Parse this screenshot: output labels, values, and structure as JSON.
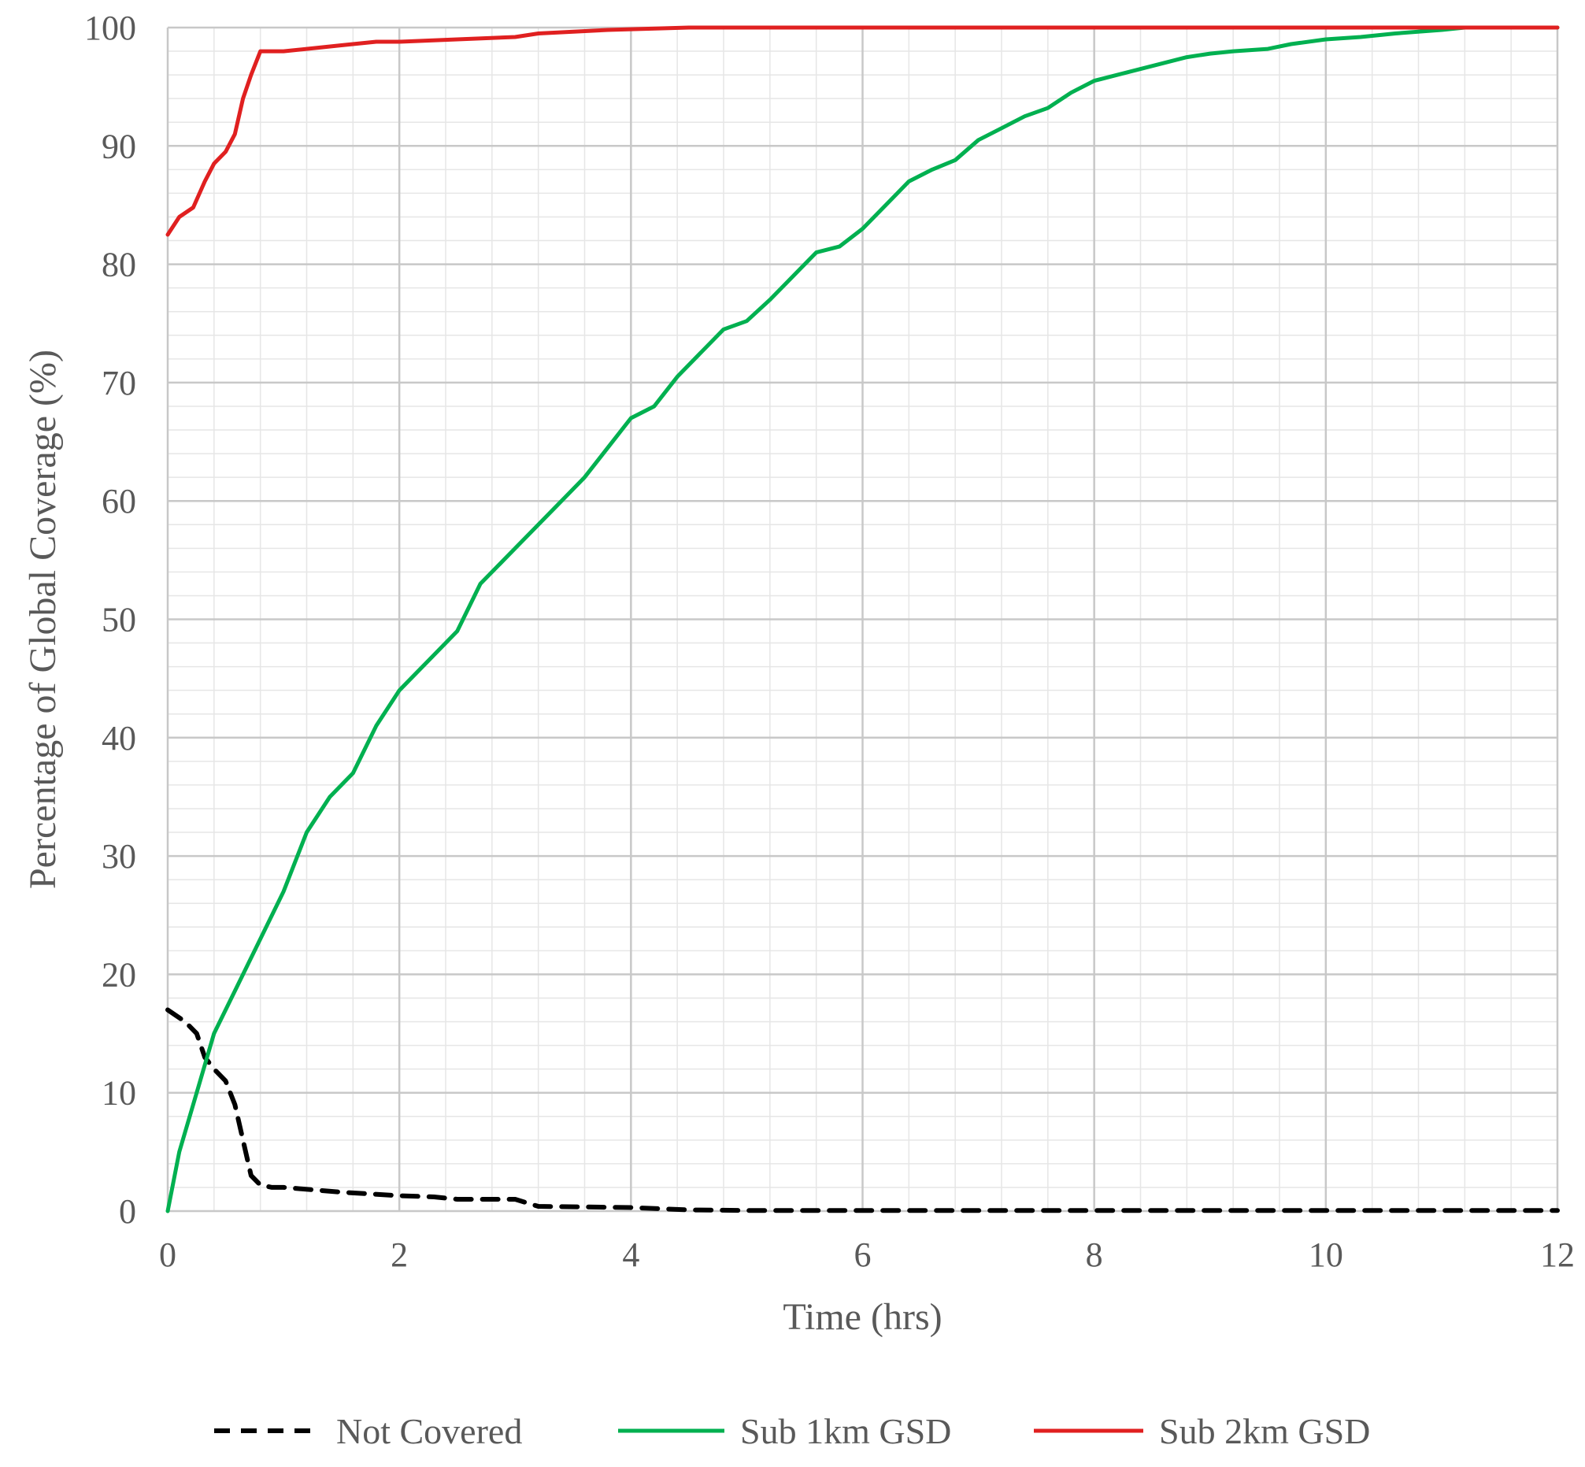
{
  "chart_data": {
    "type": "line",
    "title": "",
    "xlabel": "Time (hrs)",
    "ylabel": "Percentage of Global Coverage (%)",
    "xlim": [
      0,
      12
    ],
    "ylim": [
      0,
      100
    ],
    "x_ticks": [
      0,
      2,
      4,
      6,
      8,
      10,
      12
    ],
    "y_ticks": [
      0,
      10,
      20,
      30,
      40,
      50,
      60,
      70,
      80,
      90,
      100
    ],
    "x_tick_labels": [
      "0",
      "2",
      "4",
      "6",
      "8",
      "10",
      "12"
    ],
    "y_tick_labels": [
      "0",
      "10",
      "20",
      "30",
      "40",
      "50",
      "60",
      "70",
      "80",
      "90",
      "100"
    ],
    "grid": true,
    "legend_position": "bottom",
    "series": [
      {
        "name": "Not Covered",
        "color": "#000000",
        "dash": true,
        "points": [
          [
            0,
            17
          ],
          [
            0.15,
            16
          ],
          [
            0.25,
            15
          ],
          [
            0.32,
            13
          ],
          [
            0.4,
            12
          ],
          [
            0.5,
            11
          ],
          [
            0.58,
            9
          ],
          [
            0.65,
            6
          ],
          [
            0.72,
            3
          ],
          [
            0.8,
            2.2
          ],
          [
            0.9,
            2
          ],
          [
            1.0,
            2
          ],
          [
            1.5,
            1.6
          ],
          [
            2.0,
            1.3
          ],
          [
            2.3,
            1.2
          ],
          [
            2.5,
            1.0
          ],
          [
            3.0,
            1.0
          ],
          [
            3.2,
            0.4
          ],
          [
            4.0,
            0.3
          ],
          [
            4.5,
            0.1
          ],
          [
            5.0,
            0.05
          ],
          [
            12.0,
            0.05
          ]
        ]
      },
      {
        "name": "Sub 1km GSD",
        "color": "#00b050",
        "dash": false,
        "points": [
          [
            0,
            0
          ],
          [
            0.1,
            5
          ],
          [
            0.25,
            10
          ],
          [
            0.4,
            15
          ],
          [
            0.6,
            19
          ],
          [
            0.8,
            23
          ],
          [
            1.0,
            27
          ],
          [
            1.2,
            32
          ],
          [
            1.4,
            35
          ],
          [
            1.6,
            37
          ],
          [
            1.8,
            41
          ],
          [
            2.0,
            44
          ],
          [
            2.3,
            47
          ],
          [
            2.5,
            49
          ],
          [
            2.7,
            53
          ],
          [
            3.0,
            56
          ],
          [
            3.2,
            58
          ],
          [
            3.4,
            60
          ],
          [
            3.6,
            62
          ],
          [
            3.8,
            64.5
          ],
          [
            4.0,
            67
          ],
          [
            4.2,
            68
          ],
          [
            4.4,
            70.5
          ],
          [
            4.6,
            72.5
          ],
          [
            4.8,
            74.5
          ],
          [
            5.0,
            75.2
          ],
          [
            5.2,
            77
          ],
          [
            5.4,
            79
          ],
          [
            5.6,
            81
          ],
          [
            5.8,
            81.5
          ],
          [
            6.0,
            83
          ],
          [
            6.2,
            85
          ],
          [
            6.4,
            87
          ],
          [
            6.6,
            88
          ],
          [
            6.8,
            88.8
          ],
          [
            7.0,
            90.5
          ],
          [
            7.2,
            91.5
          ],
          [
            7.4,
            92.5
          ],
          [
            7.6,
            93.2
          ],
          [
            7.8,
            94.5
          ],
          [
            8.0,
            95.5
          ],
          [
            8.2,
            96
          ],
          [
            8.4,
            96.5
          ],
          [
            8.6,
            97
          ],
          [
            8.8,
            97.5
          ],
          [
            9.0,
            97.8
          ],
          [
            9.2,
            98
          ],
          [
            9.5,
            98.2
          ],
          [
            9.7,
            98.6
          ],
          [
            10.0,
            99
          ],
          [
            10.3,
            99.2
          ],
          [
            10.6,
            99.5
          ],
          [
            11.0,
            99.8
          ],
          [
            11.2,
            100
          ],
          [
            12.0,
            100
          ]
        ]
      },
      {
        "name": "Sub 2km GSD",
        "color": "#e02020",
        "dash": false,
        "points": [
          [
            0,
            82.5
          ],
          [
            0.1,
            84
          ],
          [
            0.22,
            84.8
          ],
          [
            0.32,
            87
          ],
          [
            0.4,
            88.5
          ],
          [
            0.5,
            89.5
          ],
          [
            0.58,
            91
          ],
          [
            0.65,
            94
          ],
          [
            0.72,
            96
          ],
          [
            0.8,
            98
          ],
          [
            1.0,
            98
          ],
          [
            1.2,
            98.2
          ],
          [
            1.5,
            98.5
          ],
          [
            1.8,
            98.8
          ],
          [
            2.0,
            98.8
          ],
          [
            2.5,
            99
          ],
          [
            3.0,
            99.2
          ],
          [
            3.2,
            99.5
          ],
          [
            3.8,
            99.8
          ],
          [
            4.5,
            100
          ],
          [
            12.0,
            100
          ]
        ]
      }
    ]
  }
}
